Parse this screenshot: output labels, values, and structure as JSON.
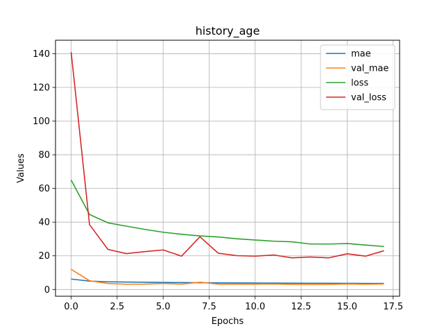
{
  "chart_data": {
    "type": "line",
    "title": "history_age",
    "xlabel": "Epochs",
    "ylabel": "Values",
    "xlim": [
      -0.85,
      17.85
    ],
    "ylim": [
      -4,
      148
    ],
    "x_ticks": [
      0.0,
      2.5,
      5.0,
      7.5,
      10.0,
      12.5,
      15.0,
      17.5
    ],
    "x_tick_labels": [
      "0.0",
      "2.5",
      "5.0",
      "7.5",
      "10.0",
      "12.5",
      "15.0",
      "17.5"
    ],
    "y_ticks": [
      0,
      20,
      40,
      60,
      80,
      100,
      120,
      140
    ],
    "y_tick_labels": [
      "0",
      "20",
      "40",
      "60",
      "80",
      "100",
      "120",
      "140"
    ],
    "grid": true,
    "legend_position": "top-right",
    "x": [
      0,
      1,
      2,
      3,
      4,
      5,
      6,
      7,
      8,
      9,
      10,
      11,
      12,
      13,
      14,
      15,
      16,
      17
    ],
    "series": [
      {
        "name": "mae",
        "color": "#1f77b4",
        "values": [
          6.2,
          5.0,
          4.6,
          4.4,
          4.3,
          4.2,
          4.1,
          4.0,
          3.95,
          3.9,
          3.85,
          3.8,
          3.75,
          3.7,
          3.7,
          3.65,
          3.6,
          3.6
        ]
      },
      {
        "name": "val_mae",
        "color": "#ff7f0e",
        "values": [
          12.0,
          5.2,
          3.6,
          3.1,
          3.2,
          3.6,
          3.2,
          4.3,
          3.2,
          3.2,
          3.2,
          3.3,
          3.0,
          3.0,
          3.0,
          3.3,
          3.1,
          3.3
        ]
      },
      {
        "name": "loss",
        "color": "#2ca02c",
        "values": [
          65.0,
          44.5,
          39.6,
          37.6,
          35.7,
          34.0,
          32.8,
          31.8,
          31.2,
          30.1,
          29.4,
          28.7,
          28.3,
          27.0,
          27.0,
          27.3,
          26.4,
          25.5
        ]
      },
      {
        "name": "val_loss",
        "color": "#d62728",
        "values": [
          141.0,
          38.5,
          23.8,
          21.3,
          22.5,
          23.5,
          19.8,
          31.3,
          21.5,
          20.1,
          19.8,
          20.5,
          18.8,
          19.3,
          18.8,
          21.2,
          19.8,
          23.0
        ]
      }
    ]
  }
}
